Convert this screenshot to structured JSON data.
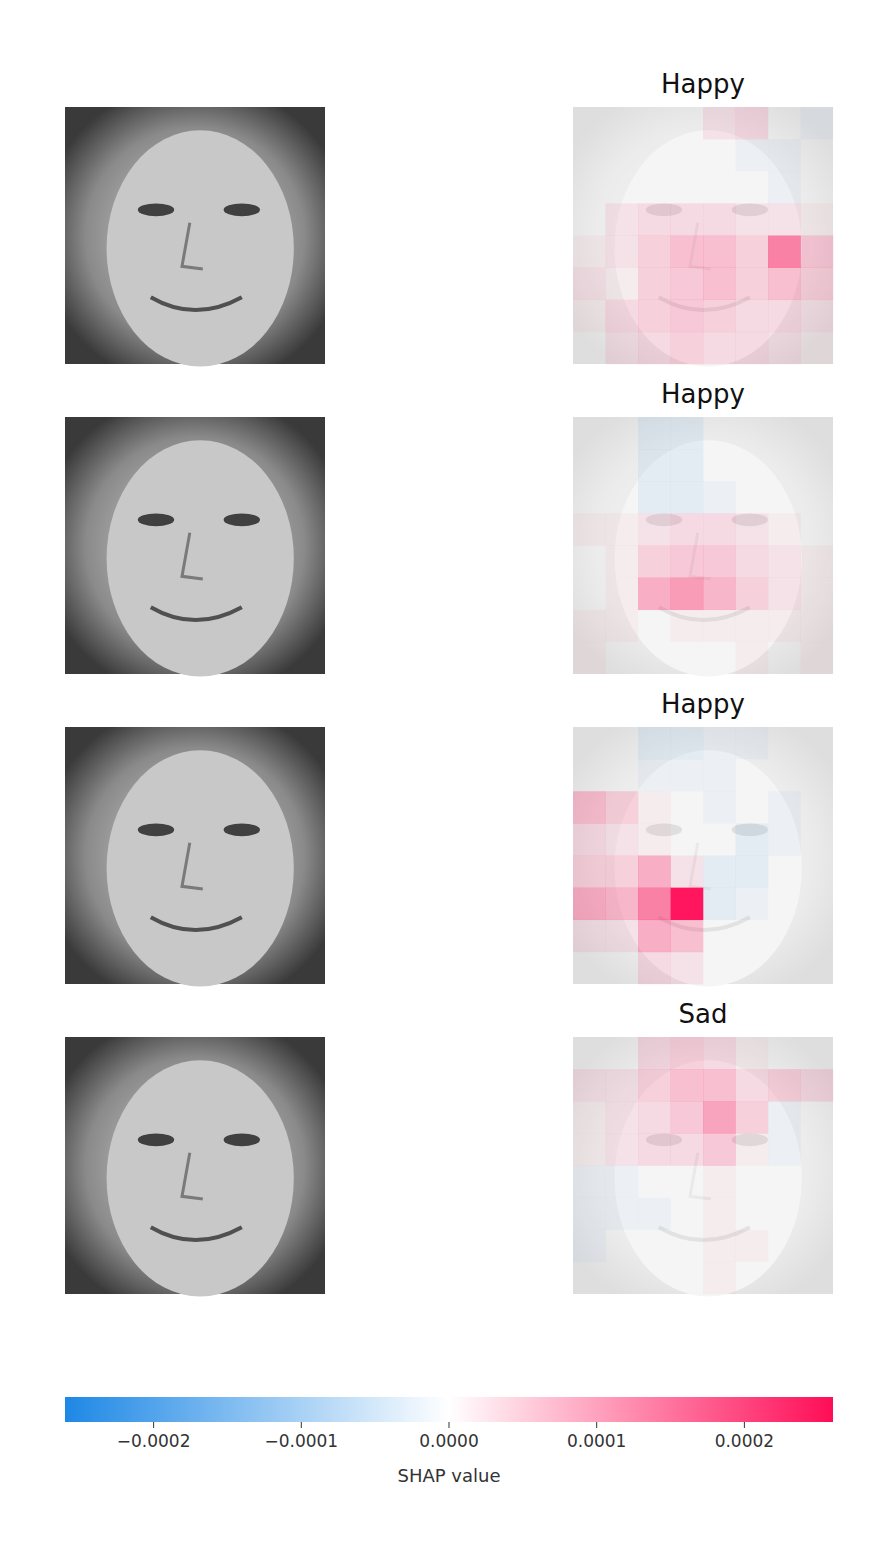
{
  "chart_data": {
    "type": "heatmap",
    "panels": [
      {
        "title": "Happy",
        "cells": [
          [
            0,
            0,
            0,
            0,
            2e-05,
            3e-05,
            0,
            -1e-05
          ],
          [
            0,
            0,
            0,
            0,
            0,
            -1e-05,
            -1e-05,
            0
          ],
          [
            0,
            0,
            0,
            0,
            0,
            0,
            -1e-05,
            0
          ],
          [
            0,
            2e-05,
            3e-05,
            3e-05,
            3e-05,
            2e-05,
            2e-05,
            1e-05
          ],
          [
            1e-05,
            2e-05,
            4e-05,
            6e-05,
            6e-05,
            4e-05,
            0.00013,
            5e-05
          ],
          [
            2e-05,
            1e-05,
            4e-05,
            5e-05,
            6e-05,
            4e-05,
            6e-05,
            4e-05
          ],
          [
            1e-05,
            3e-05,
            4e-05,
            5e-05,
            4e-05,
            3e-05,
            3e-05,
            2e-05
          ],
          [
            0,
            2e-05,
            3e-05,
            4e-05,
            3e-05,
            3e-05,
            2e-05,
            1e-05
          ]
        ]
      },
      {
        "title": "Happy",
        "cells": [
          [
            0,
            0,
            -2e-05,
            -2e-05,
            0,
            0,
            0,
            0
          ],
          [
            0,
            0,
            -2e-05,
            -2e-05,
            0,
            0,
            0,
            0
          ],
          [
            0,
            0,
            -2e-05,
            -2e-05,
            -1e-05,
            0,
            0,
            0
          ],
          [
            1e-05,
            1e-05,
            2e-05,
            3e-05,
            3e-05,
            2e-05,
            1e-05,
            0
          ],
          [
            0,
            1e-05,
            4e-05,
            5e-05,
            5e-05,
            3e-05,
            2e-05,
            1e-05
          ],
          [
            0,
            1e-05,
            8e-05,
            0.0001,
            7e-05,
            4e-05,
            2e-05,
            1e-05
          ],
          [
            1e-05,
            1e-05,
            0,
            1e-05,
            1e-05,
            1e-05,
            1e-05,
            1e-05
          ],
          [
            1e-05,
            0,
            0,
            0,
            0,
            1e-05,
            0,
            1e-05
          ]
        ]
      },
      {
        "title": "Happy",
        "cells": [
          [
            0,
            0,
            -2e-05,
            -2e-05,
            -1e-05,
            -1e-05,
            0,
            0
          ],
          [
            0,
            0,
            -1e-05,
            -1e-05,
            -1e-05,
            0,
            0,
            0
          ],
          [
            6e-05,
            4e-05,
            1e-05,
            0,
            -1e-05,
            0,
            -1e-05,
            0
          ],
          [
            3e-05,
            2e-05,
            1e-05,
            0,
            0,
            -2e-05,
            -1e-05,
            0
          ],
          [
            4e-05,
            4e-05,
            8e-05,
            2e-05,
            -2e-05,
            -2e-05,
            0,
            0
          ],
          [
            8e-05,
            7e-05,
            0.00013,
            0.00025,
            -2e-05,
            -1e-05,
            0,
            0
          ],
          [
            2e-05,
            2e-05,
            8e-05,
            6e-05,
            0,
            0,
            0,
            0
          ],
          [
            0,
            0,
            3e-05,
            2e-05,
            0,
            0,
            0,
            0
          ]
        ]
      },
      {
        "title": "Sad",
        "cells": [
          [
            0,
            0,
            3e-05,
            4e-05,
            3e-05,
            1e-05,
            0,
            0
          ],
          [
            2e-05,
            2e-05,
            4e-05,
            6e-05,
            6e-05,
            3e-05,
            4e-05,
            3e-05
          ],
          [
            1e-05,
            2e-05,
            3e-05,
            5e-05,
            9e-05,
            4e-05,
            -1e-05,
            0
          ],
          [
            1e-05,
            2e-05,
            3e-05,
            3e-05,
            5e-05,
            1e-05,
            -1e-05,
            0
          ],
          [
            -1e-05,
            -1e-05,
            0,
            0,
            1e-05,
            0,
            0,
            0
          ],
          [
            -1e-05,
            -1e-05,
            -1e-05,
            0,
            1e-05,
            0,
            0,
            0
          ],
          [
            -1e-05,
            0,
            0,
            0,
            1e-05,
            1e-05,
            0,
            0
          ],
          [
            0,
            0,
            0,
            0,
            1e-05,
            0,
            0,
            0
          ]
        ]
      }
    ],
    "colorbar": {
      "label": "SHAP value",
      "range": [
        -0.00026,
        0.00026
      ],
      "ticks": [
        {
          "value": -0.0002,
          "label": "−0.0002"
        },
        {
          "value": -0.0001,
          "label": "−0.0001"
        },
        {
          "value": 0,
          "label": "0.0000"
        },
        0.0001,
        0.0002
      ]
    }
  }
}
